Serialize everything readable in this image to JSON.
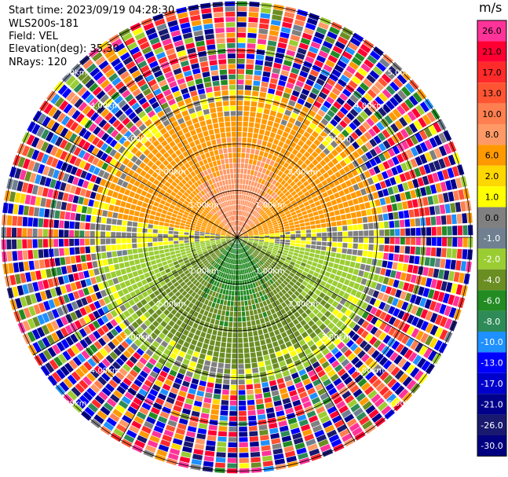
{
  "info": {
    "start_time": "Start time: 2023/09/19 04:28:30",
    "site": "WLS200s-181",
    "field": "Field: VEL",
    "elevation": "Elevation(deg): 35.30",
    "nrays": "NRays: 120"
  },
  "colorbar": {
    "unit": "m/s",
    "ticks": [
      "26.0",
      "21.0",
      "17.0",
      "13.0",
      "10.0",
      "8.0",
      "6.0",
      "2.0",
      "1.0",
      "0.0",
      "-1.0",
      "-2.0",
      "-4.0",
      "-6.0",
      "-8.0",
      "-10.0",
      "-13.0",
      "-17.0",
      "-21.0",
      "-26.0",
      "-30.0"
    ],
    "colors": [
      "#ff3399",
      "#ff0033",
      "#ff2a2a",
      "#ff5533",
      "#ff7f50",
      "#ff9966",
      "#ff9900",
      "#ffd700",
      "#ffff00",
      "#808080",
      "#708090",
      "#9acd32",
      "#6b8e23",
      "#228b22",
      "#2e8b57",
      "#1e90ff",
      "#0000ff",
      "#0000cd",
      "#00008b",
      "#191970",
      "#000080"
    ]
  },
  "chart_data": {
    "type": "heatmap",
    "projection": "polar PPI (plan position indicator)",
    "field": "VEL",
    "units": "m/s",
    "n_rays": 120,
    "range_ring_labels": [
      "1.00km",
      "2.00km",
      "3.00km",
      "4.00km",
      "5.00km"
    ],
    "color_scale_ticks": [
      26.0,
      21.0,
      17.0,
      13.0,
      10.0,
      8.0,
      6.0,
      2.0,
      1.0,
      0.0,
      -1.0,
      -2.0,
      -4.0,
      -6.0,
      -8.0,
      -10.0,
      -13.0,
      -17.0,
      -21.0,
      -26.0,
      -30.0
    ],
    "pattern": {
      "north_near_range": "positive velocities (2 to 10 m/s, yellow/orange/salmon)",
      "south_near_range": "negative velocities (-2 to -8 m/s, green/teal)",
      "east_west_axis": "near 0 m/s (gray)",
      "beyond_about_3km": "noisy values spanning the full scale"
    }
  }
}
